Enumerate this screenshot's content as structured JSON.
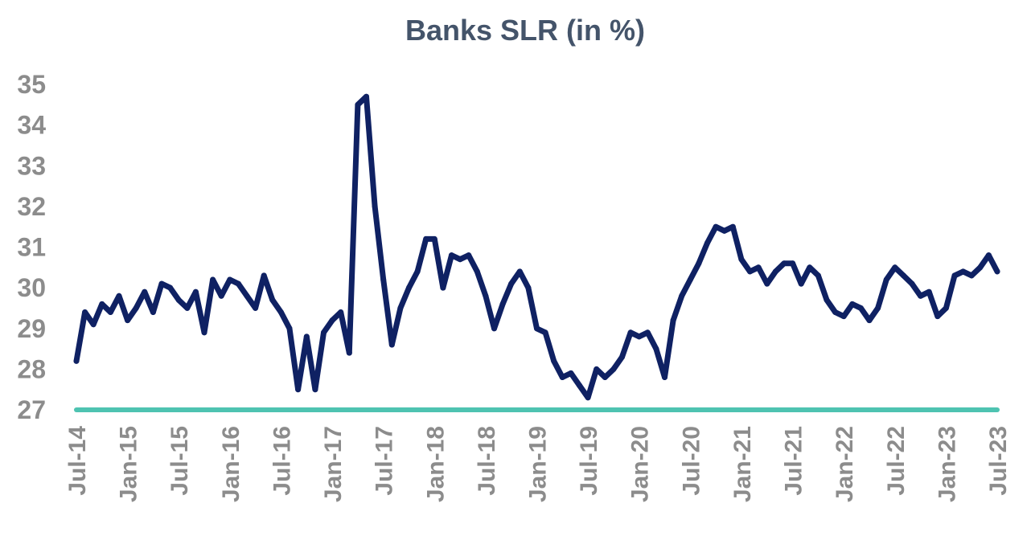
{
  "chart_data": {
    "type": "line",
    "title": "Banks SLR (in %)",
    "xlabel": "",
    "ylabel": "",
    "ylim": [
      27,
      35
    ],
    "yticks": [
      27,
      28,
      29,
      30,
      31,
      32,
      33,
      34,
      35
    ],
    "x_tick_labels": [
      "Jul-14",
      "Jan-15",
      "Jul-15",
      "Jan-16",
      "Jul-16",
      "Jan-17",
      "Jul-17",
      "Jan-18",
      "Jul-18",
      "Jan-19",
      "Jul-19",
      "Jan-20",
      "Jul-20",
      "Jan-21",
      "Jul-21",
      "Jan-22",
      "Jul-22",
      "Jan-23",
      "Jul-23"
    ],
    "grid": false,
    "legend": "none",
    "series": [
      {
        "color": "#0f2163",
        "points": [
          [
            "2014-07",
            28.2
          ],
          [
            "2014-08",
            29.4
          ],
          [
            "2014-09",
            29.1
          ],
          [
            "2014-10",
            29.6
          ],
          [
            "2014-11",
            29.4
          ],
          [
            "2014-12",
            29.8
          ],
          [
            "2015-01",
            29.2
          ],
          [
            "2015-02",
            29.5
          ],
          [
            "2015-03",
            29.9
          ],
          [
            "2015-04",
            29.4
          ],
          [
            "2015-05",
            30.1
          ],
          [
            "2015-06",
            30.0
          ],
          [
            "2015-07",
            29.7
          ],
          [
            "2015-08",
            29.5
          ],
          [
            "2015-09",
            29.9
          ],
          [
            "2015-10",
            28.9
          ],
          [
            "2015-11",
            30.2
          ],
          [
            "2015-12",
            29.8
          ],
          [
            "2016-01",
            30.2
          ],
          [
            "2016-02",
            30.1
          ],
          [
            "2016-03",
            29.8
          ],
          [
            "2016-04",
            29.5
          ],
          [
            "2016-05",
            30.3
          ],
          [
            "2016-06",
            29.7
          ],
          [
            "2016-07",
            29.4
          ],
          [
            "2016-08",
            29.0
          ],
          [
            "2016-09",
            27.5
          ],
          [
            "2016-10",
            28.8
          ],
          [
            "2016-11",
            27.5
          ],
          [
            "2016-12",
            28.9
          ],
          [
            "2017-01",
            29.2
          ],
          [
            "2017-02",
            29.4
          ],
          [
            "2017-03",
            28.4
          ],
          [
            "2017-04",
            34.5
          ],
          [
            "2017-05",
            34.7
          ],
          [
            "2017-06",
            32.0
          ],
          [
            "2017-07",
            30.2
          ],
          [
            "2017-08",
            28.6
          ],
          [
            "2017-09",
            29.5
          ],
          [
            "2017-10",
            30.0
          ],
          [
            "2017-11",
            30.4
          ],
          [
            "2017-12",
            31.2
          ],
          [
            "2018-01",
            31.2
          ],
          [
            "2018-02",
            30.0
          ],
          [
            "2018-03",
            30.8
          ],
          [
            "2018-04",
            30.7
          ],
          [
            "2018-05",
            30.8
          ],
          [
            "2018-06",
            30.4
          ],
          [
            "2018-07",
            29.8
          ],
          [
            "2018-08",
            29.0
          ],
          [
            "2018-09",
            29.6
          ],
          [
            "2018-10",
            30.1
          ],
          [
            "2018-11",
            30.4
          ],
          [
            "2018-12",
            30.0
          ],
          [
            "2019-01",
            29.0
          ],
          [
            "2019-02",
            28.9
          ],
          [
            "2019-03",
            28.2
          ],
          [
            "2019-04",
            27.8
          ],
          [
            "2019-05",
            27.9
          ],
          [
            "2019-06",
            27.6
          ],
          [
            "2019-07",
            27.3
          ],
          [
            "2019-08",
            28.0
          ],
          [
            "2019-09",
            27.8
          ],
          [
            "2019-10",
            28.0
          ],
          [
            "2019-11",
            28.3
          ],
          [
            "2019-12",
            28.9
          ],
          [
            "2020-01",
            28.8
          ],
          [
            "2020-02",
            28.9
          ],
          [
            "2020-03",
            28.5
          ],
          [
            "2020-04",
            27.8
          ],
          [
            "2020-05",
            29.2
          ],
          [
            "2020-06",
            29.8
          ],
          [
            "2020-07",
            30.2
          ],
          [
            "2020-08",
            30.6
          ],
          [
            "2020-09",
            31.1
          ],
          [
            "2020-10",
            31.5
          ],
          [
            "2020-11",
            31.4
          ],
          [
            "2020-12",
            31.5
          ],
          [
            "2021-01",
            30.7
          ],
          [
            "2021-02",
            30.4
          ],
          [
            "2021-03",
            30.5
          ],
          [
            "2021-04",
            30.1
          ],
          [
            "2021-05",
            30.4
          ],
          [
            "2021-06",
            30.6
          ],
          [
            "2021-07",
            30.6
          ],
          [
            "2021-08",
            30.1
          ],
          [
            "2021-09",
            30.5
          ],
          [
            "2021-10",
            30.3
          ],
          [
            "2021-11",
            29.7
          ],
          [
            "2021-12",
            29.4
          ],
          [
            "2022-01",
            29.3
          ],
          [
            "2022-02",
            29.6
          ],
          [
            "2022-03",
            29.5
          ],
          [
            "2022-04",
            29.2
          ],
          [
            "2022-05",
            29.5
          ],
          [
            "2022-06",
            30.2
          ],
          [
            "2022-07",
            30.5
          ],
          [
            "2022-08",
            30.3
          ],
          [
            "2022-09",
            30.1
          ],
          [
            "2022-10",
            29.8
          ],
          [
            "2022-11",
            29.9
          ],
          [
            "2022-12",
            29.3
          ],
          [
            "2023-01",
            29.5
          ],
          [
            "2023-02",
            30.3
          ],
          [
            "2023-03",
            30.4
          ],
          [
            "2023-04",
            30.3
          ],
          [
            "2023-05",
            30.5
          ],
          [
            "2023-06",
            30.8
          ],
          [
            "2023-07",
            30.4
          ]
        ]
      },
      {
        "color": "#4ec3b1",
        "points": [
          [
            "2014-07",
            27.0
          ],
          [
            "2023-07",
            27.0
          ]
        ]
      }
    ]
  }
}
